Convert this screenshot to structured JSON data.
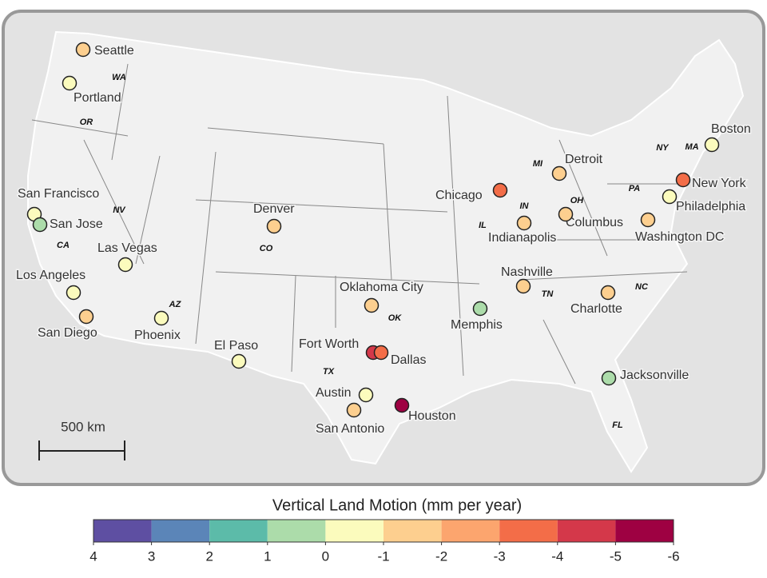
{
  "map": {
    "cities": [
      {
        "name": "Seattle",
        "value": -1.5
      },
      {
        "name": "Portland",
        "value": -0.5
      },
      {
        "name": "San Francisco",
        "value": -0.5
      },
      {
        "name": "San Jose",
        "value": 0.5
      },
      {
        "name": "Las Vegas",
        "value": -0.5
      },
      {
        "name": "Los Angeles",
        "value": -0.5
      },
      {
        "name": "San Diego",
        "value": -1.5
      },
      {
        "name": "Phoenix",
        "value": -0.5
      },
      {
        "name": "Denver",
        "value": -1.5
      },
      {
        "name": "El Paso",
        "value": -0.5
      },
      {
        "name": "Oklahoma City",
        "value": -1.5
      },
      {
        "name": "Fort Worth",
        "value": -4.5
      },
      {
        "name": "Dallas",
        "value": -3.5
      },
      {
        "name": "Austin",
        "value": -0.5
      },
      {
        "name": "San Antonio",
        "value": -1.5
      },
      {
        "name": "Houston",
        "value": -5.5
      },
      {
        "name": "Memphis",
        "value": 0.5
      },
      {
        "name": "Nashville",
        "value": -1.5
      },
      {
        "name": "Chicago",
        "value": -3.5
      },
      {
        "name": "Indianapolis",
        "value": -1.5
      },
      {
        "name": "Detroit",
        "value": -1.5
      },
      {
        "name": "Columbus",
        "value": -1.5
      },
      {
        "name": "Charlotte",
        "value": -1.5
      },
      {
        "name": "Jacksonville",
        "value": 0.5
      },
      {
        "name": "Washington DC",
        "value": -1.5
      },
      {
        "name": "Philadelphia",
        "value": -0.5
      },
      {
        "name": "New York",
        "value": -3.5
      },
      {
        "name": "Boston",
        "value": -0.5
      }
    ],
    "states": [
      "WA",
      "OR",
      "CA",
      "NV",
      "AZ",
      "CO",
      "TX",
      "OK",
      "IN",
      "IL",
      "MI",
      "OH",
      "TN",
      "NC",
      "PA",
      "NY",
      "MA",
      "FL"
    ],
    "scale_bar": "500 km",
    "colorbar": {
      "title": "Vertical Land Motion (mm per year)",
      "lim": [
        4,
        -6
      ],
      "ticks": [
        4,
        3,
        2,
        1,
        0,
        -1,
        -2,
        -3,
        -4,
        -5,
        -6
      ],
      "colors": [
        "#5e4fa2",
        "#5b85b8",
        "#5cbba9",
        "#acdcaa",
        "#fbfbbd",
        "#fdcf8f",
        "#fca56e",
        "#f36d48",
        "#d4384a",
        "#9e0142"
      ]
    }
  }
}
